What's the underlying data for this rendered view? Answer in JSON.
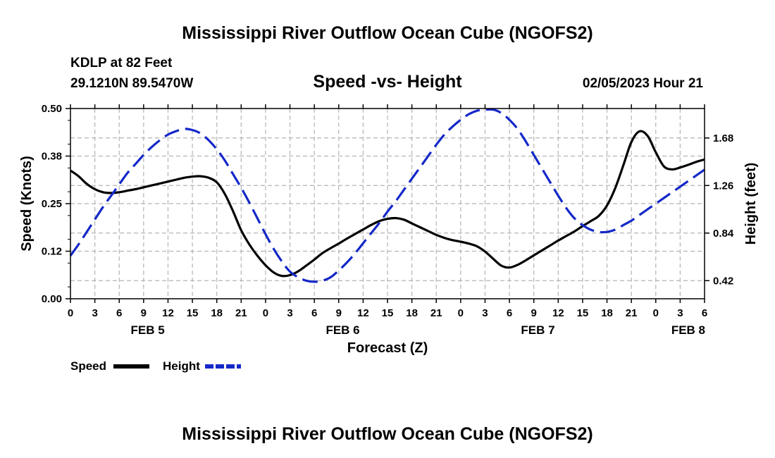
{
  "header": {
    "title": "Mississippi River Outflow Ocean Cube (NGOFS2)",
    "station": "KDLP at 82 Feet",
    "coords": "29.1210N  89.5470W",
    "subtitle": "Speed -vs- Height",
    "timestamp": "02/05/2023 Hour 21"
  },
  "footer": {
    "title": "Mississippi River Outflow Ocean Cube (NGOFS2)"
  },
  "chart_data": {
    "type": "line",
    "xlabel": "Forecast (Z)",
    "ylabel_left": "Speed (Knots)",
    "ylabel_right": "Height (feet)",
    "x_range_hours": [
      0,
      78
    ],
    "x_tick_step_hours": 3,
    "x_tick_labels": [
      "0",
      "3",
      "6",
      "9",
      "12",
      "15",
      "18",
      "21",
      "0",
      "3",
      "6",
      "9",
      "12",
      "15",
      "18",
      "21",
      "0",
      "3",
      "6",
      "9",
      "12",
      "15",
      "18",
      "21",
      "0",
      "3",
      "6"
    ],
    "date_labels": [
      {
        "label": "FEB 5",
        "hour": 9.5
      },
      {
        "label": "FEB 6",
        "hour": 33.5
      },
      {
        "label": "FEB 7",
        "hour": 57.5
      },
      {
        "label": "FEB 8",
        "hour": 76
      }
    ],
    "ylim_left": [
      0,
      0.5
    ],
    "yticks_left": [
      "0.00",
      "0.12",
      "0.25",
      "0.38",
      "0.50"
    ],
    "ylim_right": [
      0.26,
      1.94
    ],
    "yticks_right": [
      "0.42",
      "0.84",
      "1.26",
      "1.68"
    ],
    "grid": true,
    "legend": {
      "position": "bottom-left",
      "entries": [
        "Speed",
        "Height"
      ]
    },
    "series": [
      {
        "name": "Speed",
        "axis": "left",
        "color": "#000000",
        "dash": "solid",
        "x": [
          0,
          1,
          2,
          3,
          4,
          5,
          6,
          7,
          8,
          9,
          10,
          11,
          12,
          13,
          14,
          15,
          16,
          17,
          18,
          19,
          20,
          21,
          22,
          23,
          24,
          25,
          26,
          27,
          28,
          29,
          30,
          31,
          32,
          33,
          34,
          35,
          36,
          37,
          38,
          39,
          40,
          41,
          42,
          43,
          44,
          45,
          46,
          47,
          48,
          49,
          50,
          51,
          52,
          53,
          54,
          55,
          56,
          57,
          58,
          59,
          60,
          61,
          62,
          63,
          64,
          65,
          66,
          67,
          68,
          69,
          70,
          71,
          72,
          73,
          74,
          75,
          76,
          77,
          78
        ],
        "values": [
          0.337,
          0.322,
          0.302,
          0.288,
          0.28,
          0.278,
          0.28,
          0.284,
          0.288,
          0.293,
          0.298,
          0.303,
          0.308,
          0.313,
          0.318,
          0.321,
          0.322,
          0.318,
          0.306,
          0.275,
          0.23,
          0.18,
          0.143,
          0.113,
          0.088,
          0.069,
          0.06,
          0.062,
          0.072,
          0.087,
          0.103,
          0.12,
          0.133,
          0.145,
          0.158,
          0.17,
          0.182,
          0.194,
          0.204,
          0.21,
          0.212,
          0.208,
          0.198,
          0.188,
          0.178,
          0.168,
          0.16,
          0.154,
          0.15,
          0.145,
          0.138,
          0.124,
          0.105,
          0.087,
          0.082,
          0.089,
          0.101,
          0.114,
          0.127,
          0.14,
          0.153,
          0.165,
          0.177,
          0.191,
          0.204,
          0.218,
          0.245,
          0.29,
          0.35,
          0.412,
          0.44,
          0.428,
          0.385,
          0.348,
          0.34,
          0.345,
          0.352,
          0.36,
          0.366
        ]
      },
      {
        "name": "Height",
        "axis": "right",
        "color": "#1428c8",
        "dash": "dashed",
        "x": [
          0,
          1,
          2,
          3,
          4,
          5,
          6,
          7,
          8,
          9,
          10,
          11,
          12,
          13,
          14,
          15,
          16,
          17,
          18,
          19,
          20,
          21,
          22,
          23,
          24,
          25,
          26,
          27,
          28,
          29,
          30,
          31,
          32,
          33,
          34,
          35,
          36,
          37,
          38,
          39,
          40,
          41,
          42,
          43,
          44,
          45,
          46,
          47,
          48,
          49,
          50,
          51,
          52,
          53,
          54,
          55,
          56,
          57,
          58,
          59,
          60,
          61,
          62,
          63,
          64,
          65,
          66,
          67,
          68,
          69,
          70,
          71,
          72,
          73,
          74,
          75,
          76,
          77,
          78
        ],
        "values": [
          0.64,
          0.74,
          0.85,
          0.96,
          1.07,
          1.17,
          1.27,
          1.37,
          1.45,
          1.53,
          1.6,
          1.66,
          1.71,
          1.74,
          1.76,
          1.75,
          1.72,
          1.66,
          1.58,
          1.48,
          1.36,
          1.24,
          1.11,
          0.97,
          0.83,
          0.7,
          0.59,
          0.5,
          0.45,
          0.42,
          0.41,
          0.42,
          0.45,
          0.51,
          0.58,
          0.66,
          0.75,
          0.84,
          0.93,
          1.03,
          1.12,
          1.22,
          1.32,
          1.42,
          1.52,
          1.62,
          1.71,
          1.78,
          1.84,
          1.89,
          1.92,
          1.93,
          1.93,
          1.9,
          1.84,
          1.76,
          1.65,
          1.53,
          1.41,
          1.29,
          1.17,
          1.06,
          0.97,
          0.91,
          0.87,
          0.85,
          0.85,
          0.87,
          0.91,
          0.95,
          1.0,
          1.05,
          1.1,
          1.15,
          1.2,
          1.25,
          1.3,
          1.35,
          1.4
        ]
      }
    ]
  }
}
